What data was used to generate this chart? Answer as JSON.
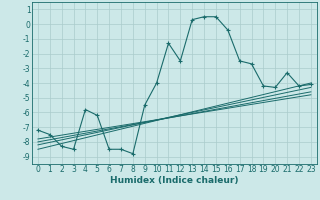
{
  "xlabel": "Humidex (Indice chaleur)",
  "bg_color": "#cce8e8",
  "grid_color": "#aacccc",
  "line_color": "#1a6b6b",
  "xlim": [
    -0.5,
    23.5
  ],
  "ylim": [
    -9.5,
    1.5
  ],
  "xticks": [
    0,
    1,
    2,
    3,
    4,
    5,
    6,
    7,
    8,
    9,
    10,
    11,
    12,
    13,
    14,
    15,
    16,
    17,
    18,
    19,
    20,
    21,
    22,
    23
  ],
  "yticks": [
    1,
    0,
    -1,
    -2,
    -3,
    -4,
    -5,
    -6,
    -7,
    -8,
    -9
  ],
  "main_x": [
    0,
    1,
    2,
    3,
    4,
    5,
    6,
    7,
    8,
    9,
    10,
    11,
    12,
    13,
    14,
    15,
    16,
    17,
    18,
    19,
    20,
    21,
    22,
    23
  ],
  "main_y": [
    -7.2,
    -7.5,
    -8.3,
    -8.5,
    -5.8,
    -6.2,
    -8.5,
    -8.5,
    -8.8,
    -5.5,
    -4.0,
    -1.3,
    -2.5,
    0.3,
    0.5,
    0.5,
    -0.4,
    -2.5,
    -2.7,
    -4.2,
    -4.3,
    -3.3,
    -4.2,
    -4.1
  ],
  "reg_lines": [
    {
      "x": [
        0,
        23
      ],
      "y": [
        -8.5,
        -4.0
      ]
    },
    {
      "x": [
        0,
        23
      ],
      "y": [
        -8.2,
        -4.3
      ]
    },
    {
      "x": [
        0,
        23
      ],
      "y": [
        -8.0,
        -4.6
      ]
    },
    {
      "x": [
        0,
        23
      ],
      "y": [
        -7.8,
        -4.8
      ]
    }
  ],
  "figsize": [
    3.2,
    2.0
  ],
  "dpi": 100,
  "tick_fontsize": 5.5,
  "xlabel_fontsize": 6.5,
  "xlabel_fontweight": "bold"
}
